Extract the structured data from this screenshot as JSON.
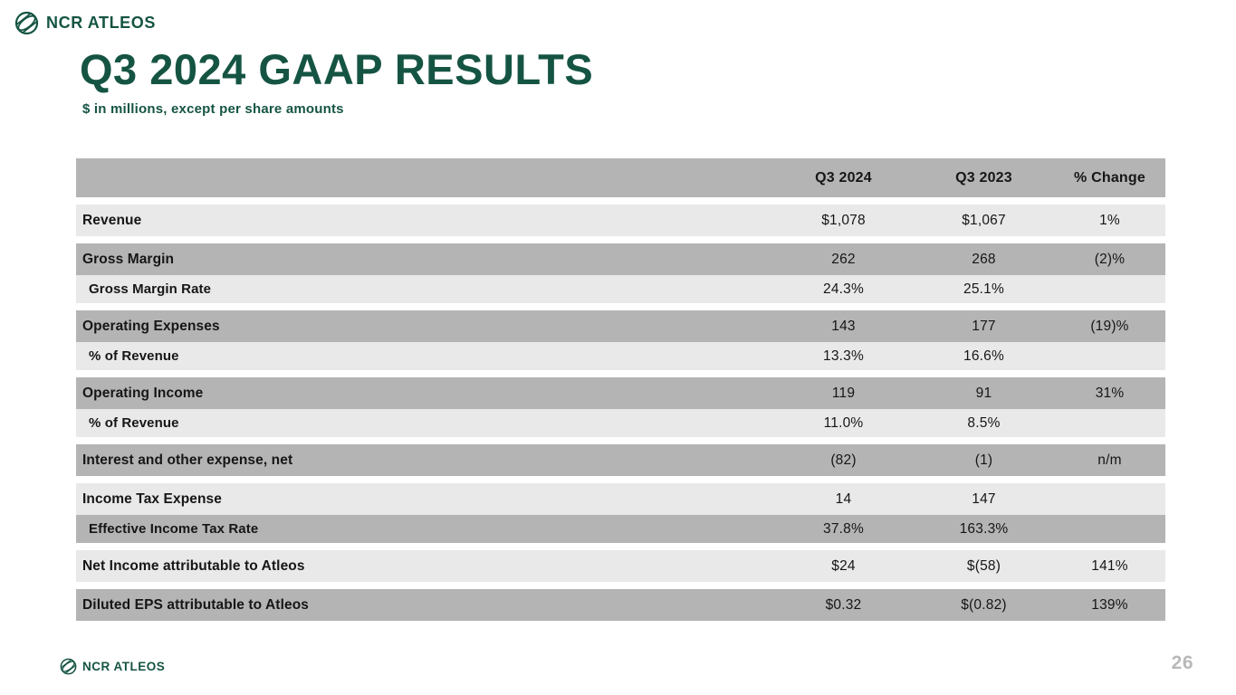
{
  "brand": {
    "name": "NCR ATLEOS",
    "color": "#155443"
  },
  "header": {
    "title": "Q3 2024 GAAP RESULTS",
    "subtitle": "$ in millions, except per share amounts"
  },
  "table": {
    "columns": [
      "Q3 2024",
      "Q3 2023",
      "% Change"
    ],
    "colors": {
      "dark_row": "#b4b4b4",
      "light_row": "#e9e9e9",
      "text": "#161616"
    },
    "rows": [
      {
        "label": "Revenue",
        "v2024": "$1,078",
        "v2023": "$1,067",
        "change": "1%",
        "shade": "light",
        "sub": false,
        "gap": true
      },
      {
        "label": "Gross Margin",
        "v2024": "262",
        "v2023": "268",
        "change": "(2)%",
        "shade": "dark",
        "sub": false,
        "gap": true
      },
      {
        "label": "Gross Margin Rate",
        "v2024": "24.3%",
        "v2023": "25.1%",
        "change": "",
        "shade": "light",
        "sub": true,
        "gap": false
      },
      {
        "label": "Operating Expenses",
        "v2024": "143",
        "v2023": "177",
        "change": "(19)%",
        "shade": "dark",
        "sub": false,
        "gap": true
      },
      {
        "label": "% of Revenue",
        "v2024": "13.3%",
        "v2023": "16.6%",
        "change": "",
        "shade": "light",
        "sub": true,
        "gap": false
      },
      {
        "label": "Operating Income",
        "v2024": "119",
        "v2023": "91",
        "change": "31%",
        "shade": "dark",
        "sub": false,
        "gap": true
      },
      {
        "label": "% of Revenue",
        "v2024": "11.0%",
        "v2023": "8.5%",
        "change": "",
        "shade": "light",
        "sub": true,
        "gap": false
      },
      {
        "label": "Interest and other expense, net",
        "v2024": "(82)",
        "v2023": "(1)",
        "change": "n/m",
        "shade": "dark",
        "sub": false,
        "gap": true
      },
      {
        "label": "Income Tax Expense",
        "v2024": "14",
        "v2023": "147",
        "change": "",
        "shade": "light",
        "sub": false,
        "gap": true
      },
      {
        "label": "Effective Income Tax Rate",
        "v2024": "37.8%",
        "v2023": "163.3%",
        "change": "",
        "shade": "dark",
        "sub": true,
        "gap": false
      },
      {
        "label": "Net Income attributable to Atleos",
        "v2024": "$24",
        "v2023": "$(58)",
        "change": "141%",
        "shade": "light",
        "sub": false,
        "gap": true
      },
      {
        "label": "Diluted EPS attributable to Atleos",
        "v2024": "$0.32",
        "v2023": "$(0.82)",
        "change": "139%",
        "shade": "dark",
        "sub": false,
        "gap": true
      }
    ]
  },
  "footer": {
    "page_number": "26"
  }
}
